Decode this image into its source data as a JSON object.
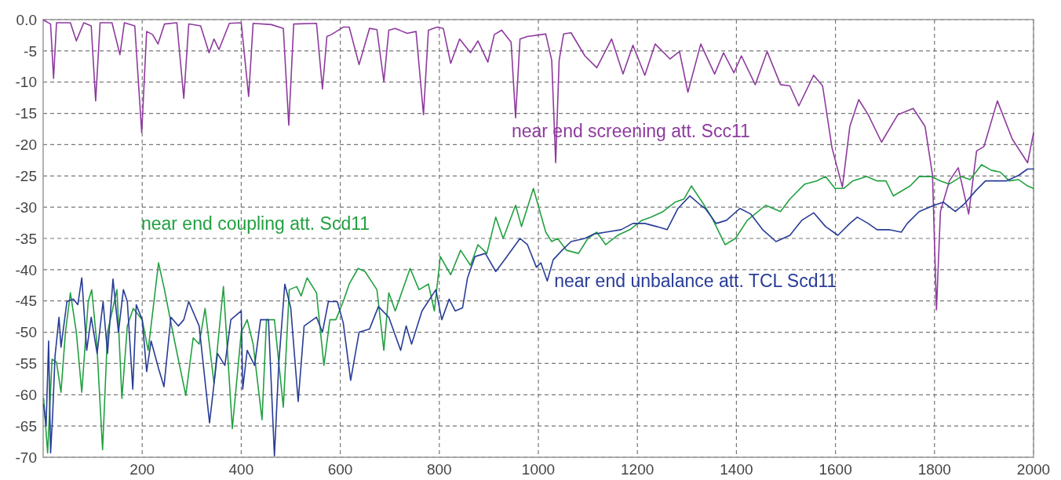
{
  "chart_data": {
    "type": "line",
    "xlim": [
      0,
      2000
    ],
    "xticks": [
      200,
      400,
      600,
      800,
      1000,
      1200,
      1400,
      1600,
      1800,
      2000
    ],
    "ylim": [
      -70,
      0
    ],
    "yticks": [
      {
        "value": 0,
        "label": "0.0"
      },
      -5,
      -10,
      -15,
      -20,
      -25,
      -30,
      -35,
      -40,
      -45,
      -50,
      -55,
      -60,
      -65,
      -70
    ],
    "grid": true,
    "series": [
      {
        "name": "near end screening att. Scc11",
        "color": "#8e3a9e",
        "x": [
          1,
          15,
          21,
          27,
          55,
          67,
          82,
          97,
          106,
          115,
          139,
          155,
          164,
          185,
          199,
          209,
          221,
          232,
          245,
          270,
          284,
          294,
          318,
          335,
          345,
          355,
          376,
          400,
          415,
          424,
          461,
          485,
          496,
          506,
          552,
          564,
          573,
          582,
          606,
          618,
          638,
          659,
          674,
          688,
          698,
          711,
          735,
          753,
          768,
          778,
          796,
          808,
          823,
          841,
          863,
          878,
          898,
          911,
          926,
          945,
          954,
          963,
          978,
          1015,
          1027,
          1035,
          1042,
          1051,
          1066,
          1094,
          1118,
          1148,
          1171,
          1191,
          1215,
          1236,
          1266,
          1285,
          1302,
          1328,
          1356,
          1374,
          1395,
          1410,
          1438,
          1462,
          1489,
          1508,
          1526,
          1556,
          1574,
          1593,
          1614,
          1629,
          1647,
          1666,
          1693,
          1726,
          1757,
          1781,
          1796,
          1804,
          1812,
          1830,
          1848,
          1869,
          1885,
          1900,
          1927,
          1957,
          1988,
          2000
        ],
        "values": [
          -0.1,
          -0.7,
          -9.4,
          -0.5,
          -0.5,
          -3.4,
          -0.5,
          -1,
          -13,
          -0.5,
          -0.5,
          -5.6,
          -0.5,
          -1,
          -18.1,
          -1.9,
          -2.4,
          -3.9,
          -0.7,
          -0.5,
          -12.6,
          -0.7,
          -1,
          -5.3,
          -3.1,
          -4.8,
          -0.6,
          -0.5,
          -12.3,
          -0.6,
          -0.8,
          -1.4,
          -16.9,
          -0.7,
          -0.6,
          -11.1,
          -2.7,
          -2.4,
          -1.2,
          -1.2,
          -7.2,
          -1.4,
          -1.6,
          -9.9,
          -1.7,
          -1.4,
          -2.2,
          -1.9,
          -15.2,
          -1.7,
          -1.2,
          -1.4,
          -7,
          -3.1,
          -5.3,
          -3.4,
          -6.8,
          -2.4,
          -1.7,
          -3.6,
          -15.7,
          -3.1,
          -2.7,
          -2.3,
          -6.5,
          -22.9,
          -6.5,
          -2.3,
          -2.1,
          -5.8,
          -7.7,
          -3.1,
          -8.7,
          -4.1,
          -8.9,
          -3.9,
          -6.3,
          -5.1,
          -11.6,
          -3.9,
          -8.7,
          -5.3,
          -8.5,
          -5.8,
          -10.4,
          -5.1,
          -10.4,
          -10.6,
          -13.8,
          -8.9,
          -10.6,
          -20.5,
          -26.8,
          -17.1,
          -12.8,
          -15.2,
          -19.6,
          -15.2,
          -14.2,
          -17.1,
          -24.9,
          -46.4,
          -30.7,
          -25.8,
          -23.7,
          -31.1,
          -21,
          -20.3,
          -13,
          -19.1,
          -22.9,
          -18.1
        ]
      },
      {
        "name": "near end coupling att. Scd11",
        "color": "#22a040",
        "x": [
          1,
          9,
          18,
          27,
          36,
          45,
          55,
          67,
          78,
          91,
          98,
          108,
          120,
          130,
          149,
          159,
          170,
          182,
          200,
          212,
          233,
          245,
          264,
          288,
          303,
          315,
          327,
          345,
          364,
          382,
          400,
          412,
          424,
          442,
          451,
          467,
          485,
          497,
          512,
          521,
          533,
          552,
          567,
          579,
          591,
          606,
          618,
          636,
          650,
          674,
          688,
          698,
          711,
          741,
          759,
          778,
          790,
          802,
          823,
          843,
          863,
          878,
          896,
          914,
          929,
          954,
          966,
          990,
          1015,
          1027,
          1039,
          1057,
          1081,
          1100,
          1118,
          1136,
          1160,
          1185,
          1209,
          1227,
          1252,
          1276,
          1294,
          1309,
          1331,
          1350,
          1377,
          1398,
          1422,
          1459,
          1489,
          1508,
          1538,
          1562,
          1580,
          1599,
          1617,
          1635,
          1663,
          1684,
          1702,
          1717,
          1751,
          1769,
          1793,
          1812,
          1830,
          1854,
          1872,
          1895,
          1915,
          1933,
          1951,
          1970,
          1988,
          2000
        ],
        "values": [
          -60.6,
          -69.3,
          -54.3,
          -54.8,
          -59.6,
          -50,
          -43.7,
          -50,
          -59.6,
          -45.1,
          -43.2,
          -51.4,
          -68.8,
          -50,
          -43.2,
          -60.6,
          -49,
          -46.2,
          -48,
          -52.9,
          -38.9,
          -43.2,
          -50.9,
          -60.1,
          -50.9,
          -51.9,
          -46.2,
          -58.2,
          -42.7,
          -65.4,
          -50,
          -48,
          -51.9,
          -64,
          -48,
          -48,
          -62,
          -43.2,
          -42.7,
          -44.2,
          -41.3,
          -43.7,
          -55.3,
          -48,
          -48,
          -45.1,
          -42.3,
          -39.8,
          -40.3,
          -43.2,
          -52.9,
          -43.7,
          -46.6,
          -39.8,
          -43.2,
          -42.3,
          -46.6,
          -37.9,
          -40.8,
          -36.9,
          -39.3,
          -36,
          -37.4,
          -31.6,
          -35,
          -29.7,
          -33.1,
          -27,
          -34,
          -35.5,
          -35,
          -36.9,
          -37.4,
          -35,
          -34,
          -36,
          -34.5,
          -33.6,
          -32.1,
          -31.6,
          -30.7,
          -29.2,
          -28.7,
          -26.6,
          -29.2,
          -31.6,
          -36,
          -35,
          -32.1,
          -29.7,
          -30.7,
          -28.7,
          -26.3,
          -25.8,
          -25.1,
          -27,
          -27,
          -25.8,
          -25.1,
          -25.8,
          -25.8,
          -28.2,
          -26.6,
          -25.1,
          -25.1,
          -25.8,
          -26.3,
          -25.1,
          -25.6,
          -23.2,
          -24.1,
          -24.4,
          -25.8,
          -25.6,
          -26.6,
          -27
        ]
      },
      {
        "name": "near end unbalance att. TCL Scd11",
        "color": "#283c96",
        "x": [
          1,
          6,
          11,
          15,
          19,
          24,
          32,
          36,
          48,
          61,
          70,
          78,
          88,
          97,
          109,
          121,
          130,
          141,
          152,
          162,
          170,
          181,
          188,
          200,
          209,
          218,
          233,
          244,
          258,
          273,
          284,
          294,
          315,
          336,
          352,
          367,
          379,
          400,
          403,
          412,
          427,
          439,
          455,
          467,
          476,
          488,
          500,
          515,
          527,
          552,
          564,
          576,
          594,
          606,
          621,
          638,
          659,
          677,
          698,
          722,
          733,
          744,
          765,
          793,
          805,
          820,
          832,
          847,
          857,
          872,
          893,
          914,
          932,
          963,
          978,
          996,
          1005,
          1018,
          1030,
          1048,
          1066,
          1094,
          1112,
          1136,
          1167,
          1191,
          1215,
          1239,
          1260,
          1282,
          1306,
          1328,
          1337,
          1359,
          1380,
          1407,
          1429,
          1453,
          1480,
          1508,
          1532,
          1556,
          1580,
          1605,
          1629,
          1644,
          1666,
          1684,
          1708,
          1733,
          1745,
          1769,
          1799,
          1818,
          1842,
          1860,
          1884,
          1903,
          1927,
          1945,
          1970,
          1988,
          2000
        ],
        "values": [
          -61.6,
          -64.9,
          -51.4,
          -69.3,
          -63.5,
          -53.8,
          -47.6,
          -52.4,
          -45.1,
          -44.7,
          -45.6,
          -41.3,
          -52.9,
          -47.6,
          -53.4,
          -45.1,
          -53.4,
          -41.5,
          -50,
          -43.2,
          -45.1,
          -59.1,
          -45.6,
          -48,
          -56.3,
          -51.4,
          -55.8,
          -58.7,
          -47.6,
          -49,
          -48,
          -45.1,
          -49,
          -64.5,
          -53.4,
          -55.3,
          -48,
          -46.6,
          -59.1,
          -52.9,
          -55.3,
          -48,
          -48,
          -69.8,
          -54.8,
          -42.3,
          -46.1,
          -61.1,
          -49,
          -47.6,
          -50,
          -45.1,
          -45.1,
          -48.5,
          -57.7,
          -50,
          -49.5,
          -45.9,
          -47.6,
          -52.9,
          -49,
          -51.9,
          -46.6,
          -43.2,
          -48,
          -44.7,
          -46.6,
          -46.1,
          -41.3,
          -37.9,
          -37.4,
          -40.3,
          -38.4,
          -35,
          -36,
          -39.6,
          -38.9,
          -41.8,
          -38.4,
          -36.9,
          -35.5,
          -35,
          -34.3,
          -34,
          -33.6,
          -32.6,
          -32.6,
          -33.1,
          -33.6,
          -30.2,
          -28.2,
          -29.7,
          -30.2,
          -32.6,
          -32.1,
          -30.2,
          -31.1,
          -33.6,
          -35.5,
          -34.5,
          -32.1,
          -30.9,
          -33.1,
          -34.5,
          -32.6,
          -31.6,
          -32.6,
          -33.6,
          -33.6,
          -34,
          -32.6,
          -30.7,
          -29.7,
          -29.2,
          -30.7,
          -29.5,
          -27.3,
          -25.8,
          -25.8,
          -25.8,
          -24.9,
          -23.9,
          -23.9
        ]
      }
    ]
  }
}
